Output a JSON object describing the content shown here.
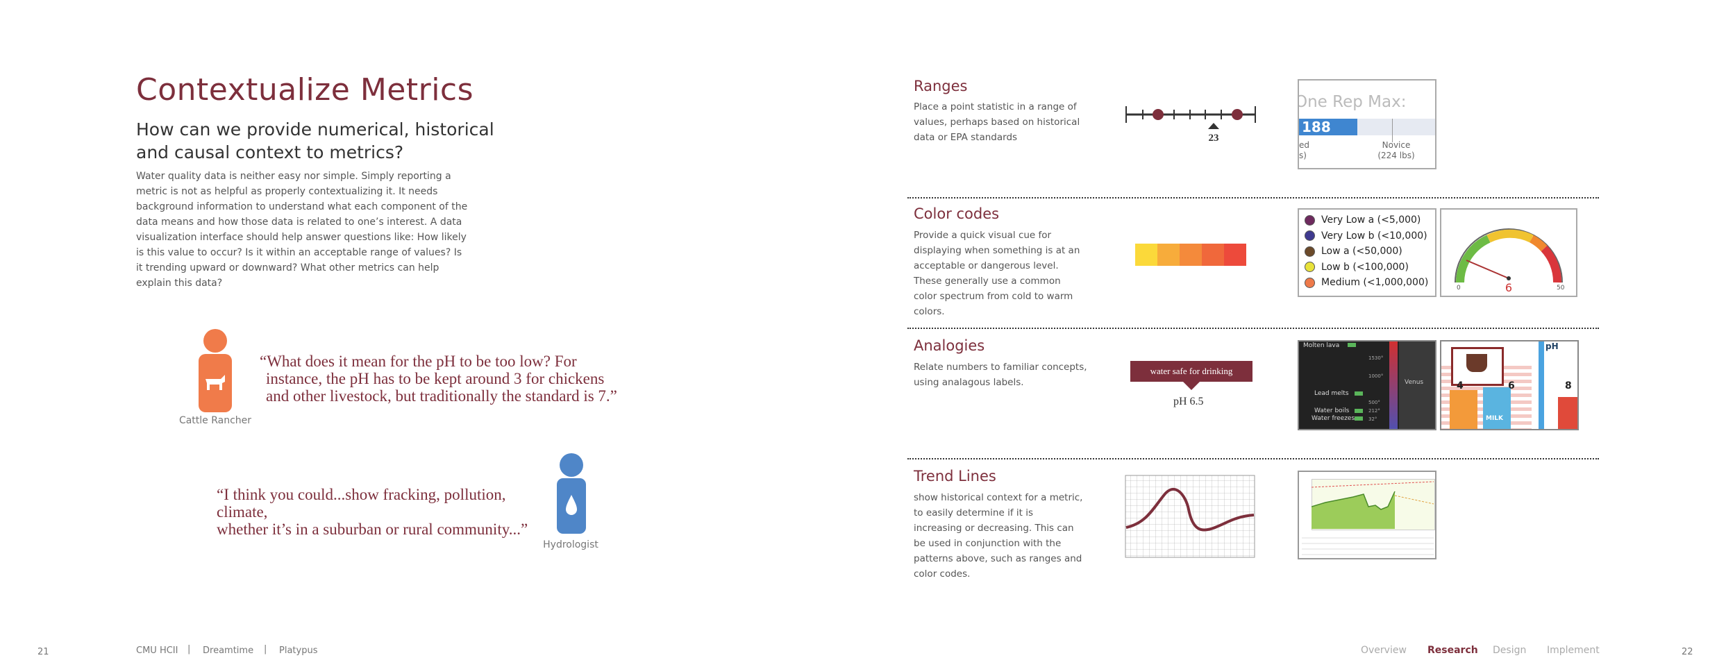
{
  "left": {
    "title": "Contextualize Metrics",
    "subtitle": "How can we provide numerical, historical and causal context to metrics?",
    "body": "Water quality data is neither easy nor simple. Simply reporting a metric is not as helpful as properly contextualizing it. It needs background information to understand what each component of the data means and how those data is related to one’s interest. A data visualization interface should help answer questions like: How likely is this value to occur? Is it within an acceptable range of values? Is it trending upward or downward? What other metrics can help explain this data?",
    "quote1": {
      "text_line1": "“What does it mean for the pH to be too low? For",
      "text_line2": "instance, the pH has to be kept around 3 for chickens",
      "text_line3": "and other livestock, but traditionally the standard is 7.”",
      "caption": "Cattle Rancher",
      "color": "#f07b4a"
    },
    "quote2": {
      "text_line1": "“I think you could...show fracking, pollution, climate,",
      "text_line2": "whether it’s in a suburban or rural community...”",
      "caption": "Hydrologist",
      "color": "#4f86c8"
    }
  },
  "sections": [
    {
      "title": "Ranges",
      "desc": "Place a point statistic in a range of values, perhaps based on historical data or EPA standards",
      "range_marker": "23",
      "thumb": {
        "heading": "One Rep Max:",
        "bar_value": "188 lbs",
        "label_a": "ed",
        "label_a2": "s)",
        "label_b": "Novice",
        "label_b2": "(224 lbs)"
      }
    },
    {
      "title": "Color codes",
      "desc": "Provide a quick visual cue for displaying when something is at an acceptable or dangerous level. These generally use a common color spectrum from cold to warm colors.",
      "swatches": [
        "#fbd93a",
        "#f7ac3b",
        "#f48a3b",
        "#f0683b",
        "#ed4a3b"
      ],
      "legend": [
        {
          "label": "Very Low a (<5,000)",
          "color": "#6e2a5e"
        },
        {
          "label": "Very Low b (<10,000)",
          "color": "#3f3a8f"
        },
        {
          "label": "Low a (<50,000)",
          "color": "#6b4a2a"
        },
        {
          "label": "Low b (<100,000)",
          "color": "#e8e23a"
        },
        {
          "label": "Medium (<1,000,000)",
          "color": "#ee7a4a"
        }
      ],
      "gauge": {
        "min": "0",
        "max": "50",
        "value": "6"
      }
    },
    {
      "title": "Analogies",
      "desc": "Relate numbers to familiar concepts, using analagous labels.",
      "callout": "water safe for drinking",
      "callout_value": "pH 6.5",
      "temp_labels": [
        "Molten lava",
        "Lead melts",
        "Water boils",
        "Water freezes"
      ],
      "temp_values": [
        "1530°",
        "1000°",
        "500°",
        "212°",
        "32°"
      ],
      "venus": "Venus",
      "ph_labels": [
        "pH",
        "4",
        "6",
        "8"
      ],
      "milk": "MILK"
    },
    {
      "title": "Trend Lines",
      "desc": "show historical context for a metric, to easily determine if it is increasing or decreasing. This can be used in conjunction with the patterns above, such as ranges and color codes."
    }
  ],
  "footer": {
    "page_left": "21",
    "page_right": "22",
    "org1": "CMU HCII",
    "org2": "Dreamtime",
    "org3": "Platypus",
    "nav": [
      "Overview",
      "Research",
      "Design",
      "Implement"
    ],
    "active_nav": "Research"
  },
  "colors": {
    "accent": "#7d2f3c"
  }
}
